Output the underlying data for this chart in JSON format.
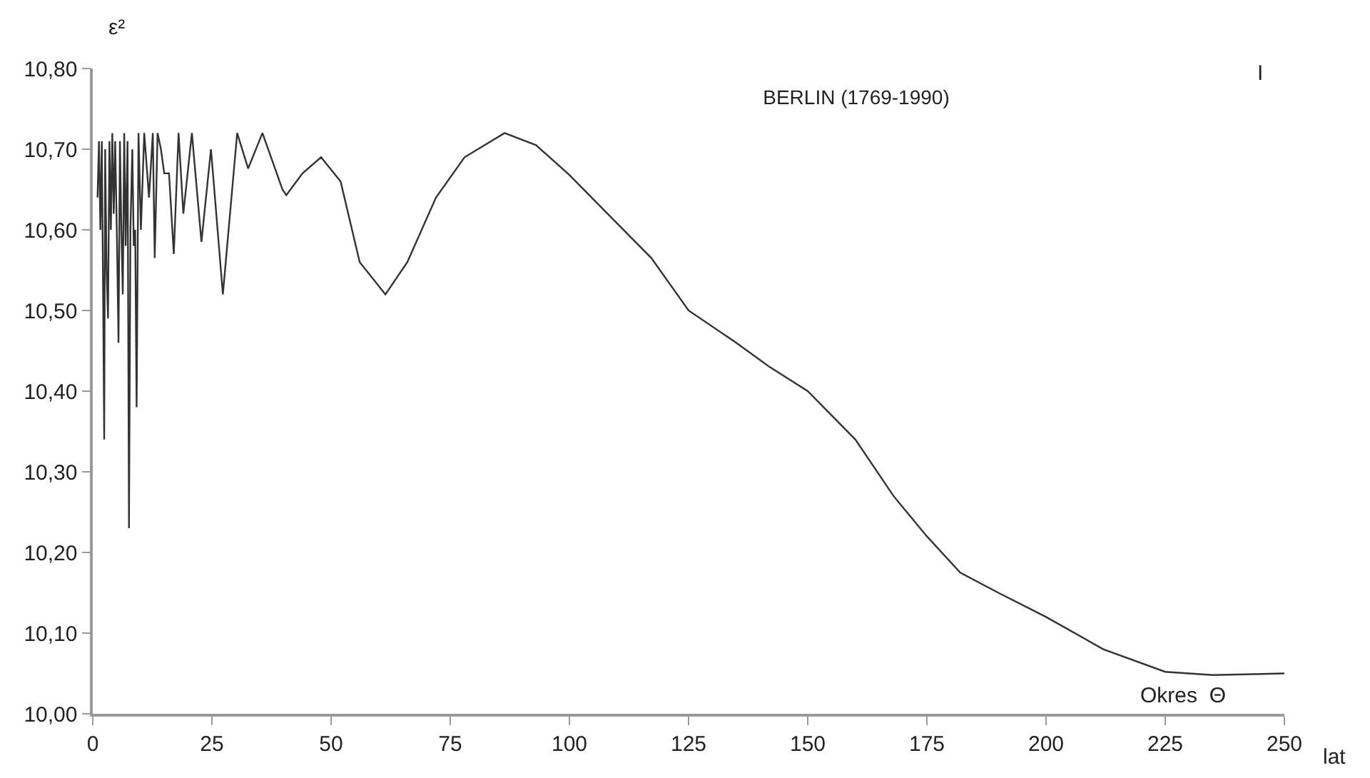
{
  "chart_data": {
    "type": "line",
    "title": "BERLIN (1769-1990)",
    "xlabel": "lat",
    "ylabel": "ε²",
    "annotations": [
      "I",
      "Okres  Θ"
    ],
    "x": [
      1.0,
      1.3,
      1.6,
      1.9,
      2.2,
      2.4,
      2.6,
      2.9,
      3.2,
      3.5,
      3.8,
      4.1,
      4.4,
      4.7,
      5.1,
      5.4,
      5.7,
      6.0,
      6.3,
      6.6,
      6.9,
      7.3,
      7.6,
      7.9,
      8.3,
      8.6,
      8.9,
      9.2,
      9.6,
      10.1,
      10.8,
      11.8,
      12.6,
      13.0,
      13.6,
      14.3,
      15.0,
      16.0,
      17.0,
      18.0,
      19.0,
      20.8,
      22.8,
      24.8,
      27.3,
      30.3,
      32.6,
      35.6,
      39.8,
      40.6,
      44,
      47.9,
      52,
      56,
      61.4,
      66,
      72,
      78,
      86.4,
      93,
      100,
      108,
      117.2,
      125,
      135,
      142,
      150,
      160,
      168,
      175,
      182,
      190,
      200,
      212,
      225,
      235,
      250
    ],
    "values": [
      10.64,
      10.71,
      10.6,
      10.71,
      10.5,
      10.34,
      10.7,
      10.55,
      10.49,
      10.71,
      10.6,
      10.72,
      10.62,
      10.71,
      10.58,
      10.46,
      10.71,
      10.6,
      10.52,
      10.72,
      10.58,
      10.71,
      10.23,
      10.6,
      10.7,
      10.58,
      10.6,
      10.38,
      10.72,
      10.6,
      10.72,
      10.64,
      10.72,
      10.565,
      10.72,
      10.7,
      10.67,
      10.67,
      10.57,
      10.72,
      10.62,
      10.72,
      10.585,
      10.7,
      10.52,
      10.72,
      10.676,
      10.72,
      10.65,
      10.643,
      10.67,
      10.69,
      10.66,
      10.56,
      10.52,
      10.56,
      10.64,
      10.69,
      10.72,
      10.705,
      10.668,
      10.62,
      10.565,
      10.5,
      10.46,
      10.43,
      10.4,
      10.34,
      10.27,
      10.22,
      10.175,
      10.15,
      10.12,
      10.08,
      10.052,
      10.048,
      10.05
    ],
    "color": "#333333",
    "xlim": [
      0,
      250
    ],
    "xticks": [
      0,
      25,
      50,
      75,
      100,
      125,
      150,
      175,
      200,
      225,
      250
    ],
    "ylim": [
      10.0,
      10.8
    ],
    "yticks": [
      {
        "value": 10.0,
        "label": "10,00"
      },
      {
        "value": 10.1,
        "label": "10,10"
      },
      {
        "value": 10.2,
        "label": "10,20"
      },
      {
        "value": 10.3,
        "label": "10,30"
      },
      {
        "value": 10.4,
        "label": "10,40"
      },
      {
        "value": 10.5,
        "label": "10,50"
      },
      {
        "value": 10.6,
        "label": "10,60"
      },
      {
        "value": 10.7,
        "label": "10,70"
      },
      {
        "value": 10.8,
        "label": "10,80"
      }
    ],
    "legend": false,
    "marker": "none",
    "line_style": "solid"
  }
}
